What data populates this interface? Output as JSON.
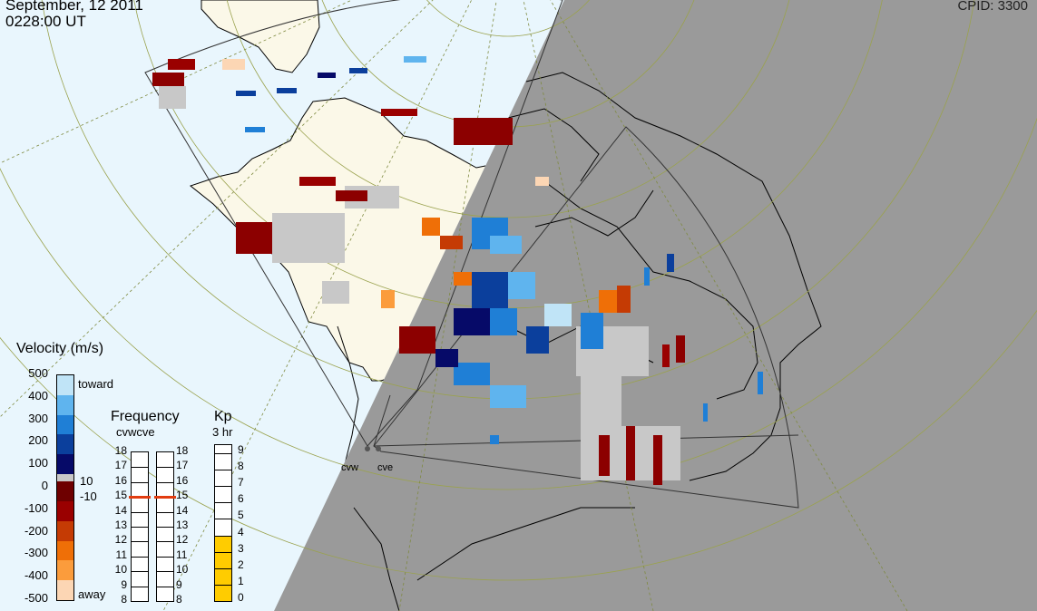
{
  "header": {
    "date": "September, 12 2011",
    "time": "0228:00 UT",
    "cpid": "CPID:  3300"
  },
  "velocity_legend": {
    "title": "Velocity (m/s)",
    "ticks": [
      "500",
      "400",
      "300",
      "200",
      "100",
      "0",
      "-100",
      "-200",
      "-300",
      "-400",
      "-500"
    ],
    "toward_label": "toward",
    "away_label": "away",
    "ground_scatter_upper": "10",
    "ground_scatter_lower": "-10",
    "colors": [
      "#c0e4f7",
      "#5fb4ee",
      "#1f7fd6",
      "#0b3f9c",
      "#060a68",
      "#6e0000",
      "#9a0000",
      "#c53b04",
      "#ef6f07",
      "#fb9c3c",
      "#fcd6b4"
    ],
    "ground_scatter_color": "#c8c8c8"
  },
  "frequency_legend": {
    "title": "Frequency",
    "sub": "cvwcve",
    "ticks": [
      "18",
      "17",
      "16",
      "15",
      "14",
      "13",
      "12",
      "11",
      "10",
      "9",
      "8"
    ],
    "cvw_value": 15.0,
    "cve_value": 15.0,
    "marker_color": "#e23c10"
  },
  "kp_legend": {
    "title": "Kp",
    "sub": "3 hr",
    "ticks": [
      "9",
      "8",
      "7",
      "6",
      "5",
      "4",
      "3",
      "2",
      "1",
      "0"
    ],
    "value": 4,
    "fill_color": "#ffcc00"
  },
  "radars": [
    {
      "name": "cvw"
    },
    {
      "name": "cve"
    }
  ],
  "map": {
    "ocean_color": "#e9f6fd",
    "land_color": "#fbf8e8",
    "night_color": "#9a9a9a",
    "grid_color": "#9aa24e",
    "coast_color": "#000000"
  }
}
